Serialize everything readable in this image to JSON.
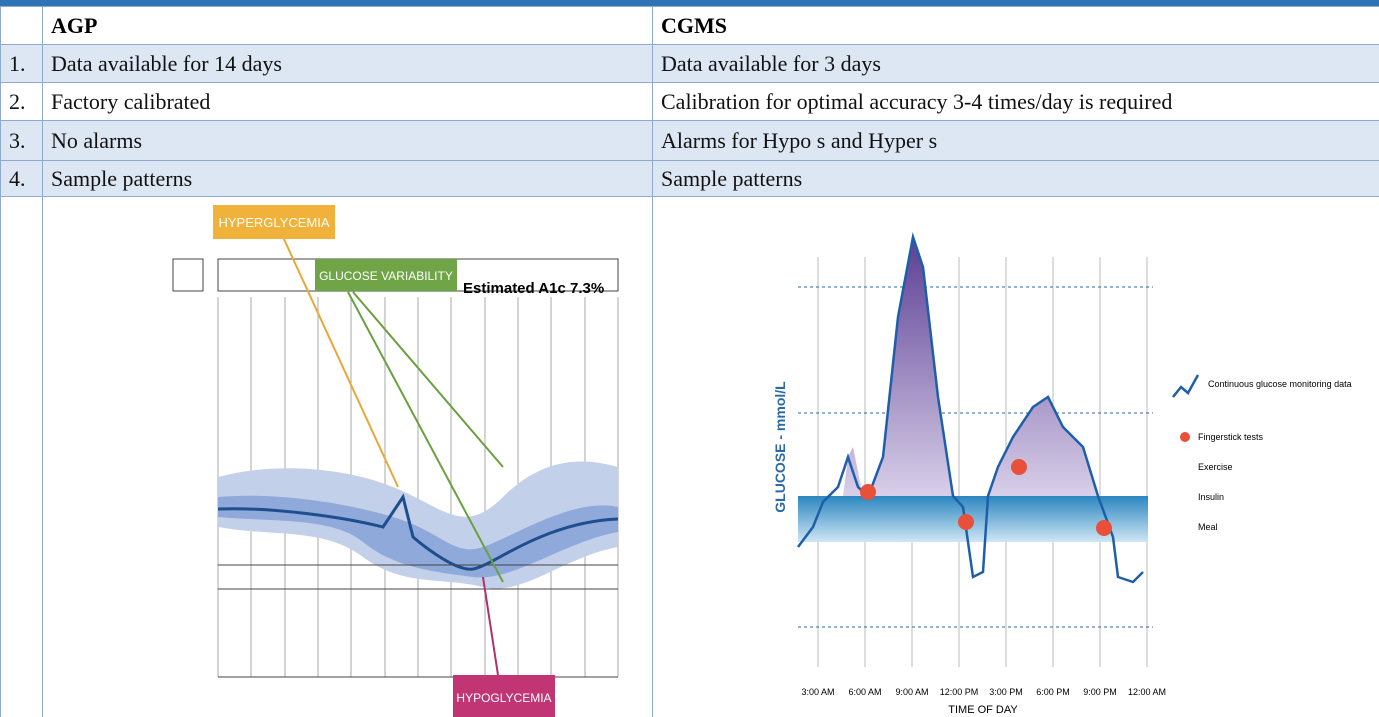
{
  "table": {
    "header": [
      "AGP",
      "CGMS"
    ],
    "rows": [
      [
        "1.",
        "Data available for 14 days",
        "Data available for 3 days"
      ],
      [
        "2.",
        "Factory calibrated",
        "Calibration for optimal accuracy 3-4 times/day is required"
      ],
      [
        "3.",
        "No alarms",
        "Alarms for Hypo s and Hyper s"
      ],
      [
        "4.",
        "Sample patterns",
        "Sample patterns"
      ]
    ]
  },
  "figures": {
    "agp": {
      "hyperglycemia": "HYPERGLYCEMIA",
      "variability": "GLUCOSE VARIABILITY",
      "a1c": "Estimated A1c 7.3%",
      "hypoglycemia": "HYPOGLYCEMIA"
    },
    "cgms": {
      "y_label": "GLUCOSE - mmol/L",
      "x_label": "TIME OF DAY",
      "times": [
        "3:00 AM",
        "6:00 AM",
        "9:00 AM",
        "12:00 PM",
        "3:00 PM",
        "6:00 PM",
        "9:00 PM",
        "12:00 AM"
      ],
      "legend": [
        "Continuous glucose monitoring data",
        "Fingerstick tests",
        "Exercise",
        "Insulin",
        "Meal"
      ]
    }
  }
}
